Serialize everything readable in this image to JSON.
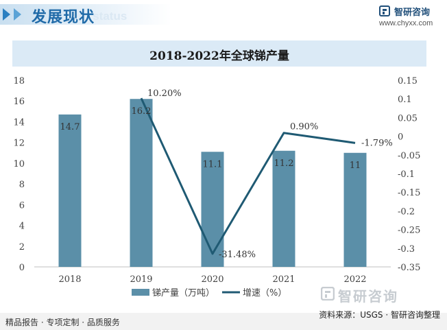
{
  "header": {
    "section_title": "发展现状",
    "section_subtitle": "ent status",
    "brand_name": "智研咨询",
    "brand_url": "www.chyxx.com"
  },
  "chart_data": {
    "type": "bar",
    "title": "2018-2022年全球锑产量",
    "categories": [
      "2018",
      "2019",
      "2020",
      "2021",
      "2022"
    ],
    "series": [
      {
        "name": "锑产量（万吨）",
        "type": "bar",
        "axis": "left",
        "color": "#5b8fa8",
        "values": [
          14.7,
          16.2,
          11.1,
          11.2,
          11
        ],
        "labels": [
          "14.7",
          "16.2",
          "11.1",
          "11.2",
          "11"
        ]
      },
      {
        "name": "增速（%）",
        "type": "line",
        "axis": "right",
        "color": "#1f5a73",
        "values": [
          null,
          0.102,
          -0.3148,
          0.009,
          -0.0179
        ],
        "labels": [
          "",
          "10.20%",
          "-31.48%",
          "0.90%",
          "-1.79%"
        ]
      }
    ],
    "left_axis": {
      "min": 0,
      "max": 18,
      "step": 2,
      "ticks": [
        "0",
        "2",
        "4",
        "6",
        "8",
        "10",
        "12",
        "14",
        "16",
        "18"
      ]
    },
    "right_axis": {
      "min": -0.35,
      "max": 0.15,
      "step": 0.05,
      "ticks": [
        "-0.35",
        "-0.3",
        "-0.25",
        "-0.2",
        "-0.15",
        "-0.1",
        "-0.05",
        "0",
        "0.05",
        "0.1",
        "0.15"
      ]
    },
    "legend": "bottom-center",
    "grid": false
  },
  "watermark": "智研咨询",
  "footer": {
    "left": "精品报告 · 专项定制 · 品质服务",
    "right": "资料来源：USGS · 智研咨询整理"
  }
}
